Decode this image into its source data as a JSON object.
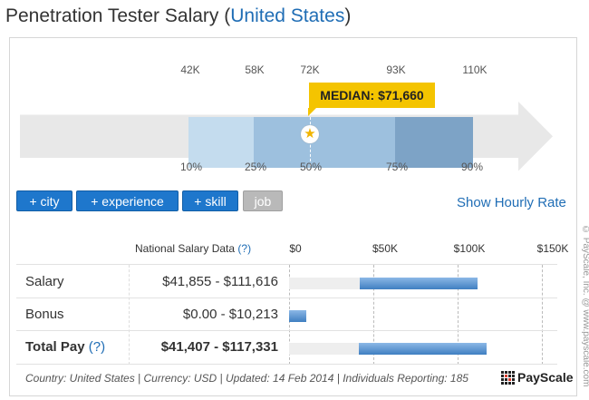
{
  "title": {
    "prefix": "Penetration Tester Salary (",
    "link": "United States",
    "suffix": ")"
  },
  "percentile_chart": {
    "values_top": [
      "42K",
      "58K",
      "72K",
      "93K",
      "110K"
    ],
    "percentiles": [
      "10%",
      "25%",
      "50%",
      "75%",
      "90%"
    ],
    "median_label": "MEDIAN: $71,660",
    "colors": {
      "p10_25": "#c4dcee",
      "p25_75": "#9dc0de",
      "p75_90": "#7da3c6",
      "track": "#e8e8e8",
      "median": "#f4c400"
    }
  },
  "filters": {
    "city": "+ city",
    "experience": "+ experience",
    "skill": "+ skill",
    "job": "job"
  },
  "hourly_link": "Show Hourly Rate",
  "table": {
    "header_label": "National Salary Data",
    "header_help": "(?)",
    "axis": [
      "$0",
      "$50K",
      "$100K",
      "$150K"
    ],
    "rows": [
      {
        "label": "Salary",
        "help": "",
        "value": "$41,855 - $111,616",
        "low": 41855,
        "high": 111616
      },
      {
        "label": "Bonus",
        "help": "",
        "value": "$0.00 - $10,213",
        "low": 0,
        "high": 10213
      },
      {
        "label": "Total Pay",
        "help": "(?)",
        "value": "$41,407 - $117,331",
        "low": 41407,
        "high": 117331
      }
    ]
  },
  "footer": "Country: United States | Currency: USD | Updated: 14 Feb 2014 | Individuals Reporting: 185",
  "logo": "PayScale",
  "side_text": "© PayScale, Inc. @ www.payscale.com"
}
